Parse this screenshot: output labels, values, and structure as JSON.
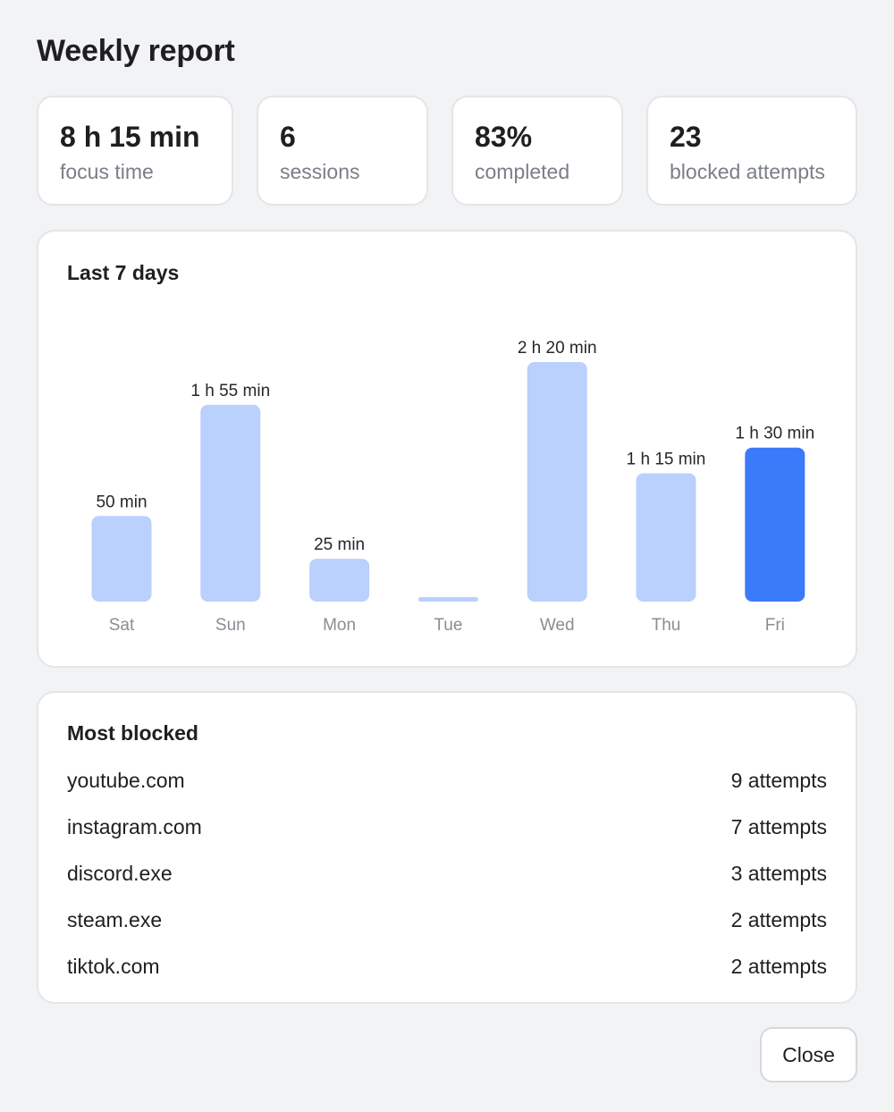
{
  "page": {
    "title": "Weekly report"
  },
  "stats": [
    {
      "value": "8 h 15 min",
      "label": "focus time"
    },
    {
      "value": "6",
      "label": "sessions"
    },
    {
      "value": "83%",
      "label": "completed"
    },
    {
      "value": "23",
      "label": "blocked attempts"
    }
  ],
  "chart_panel": {
    "title": "Last 7 days"
  },
  "chart_data": {
    "type": "bar",
    "title": "Last 7 days",
    "categories": [
      "Sat",
      "Sun",
      "Mon",
      "Tue",
      "Wed",
      "Thu",
      "Fri"
    ],
    "values": [
      50,
      115,
      25,
      0,
      140,
      75,
      90
    ],
    "value_labels": [
      "50 min",
      "1 h 55 min",
      "25 min",
      "",
      "2 h 20 min",
      "1 h 15 min",
      "1 h 30 min"
    ],
    "highlighted_category": "Fri",
    "colors": {
      "bar": "#bad0fd",
      "highlight": "#3b7bfa",
      "tick_label": "#8a8d94",
      "value_label": "#26272b"
    },
    "grid": false,
    "legend": false
  },
  "blocked_panel": {
    "title": "Most blocked",
    "items": [
      {
        "name": "youtube.com",
        "count": "9 attempts"
      },
      {
        "name": "instagram.com",
        "count": "7 attempts"
      },
      {
        "name": "discord.exe",
        "count": "3 attempts"
      },
      {
        "name": "steam.exe",
        "count": "2 attempts"
      },
      {
        "name": "tiktok.com",
        "count": "2 attempts"
      }
    ]
  },
  "footer": {
    "close_label": "Close"
  }
}
